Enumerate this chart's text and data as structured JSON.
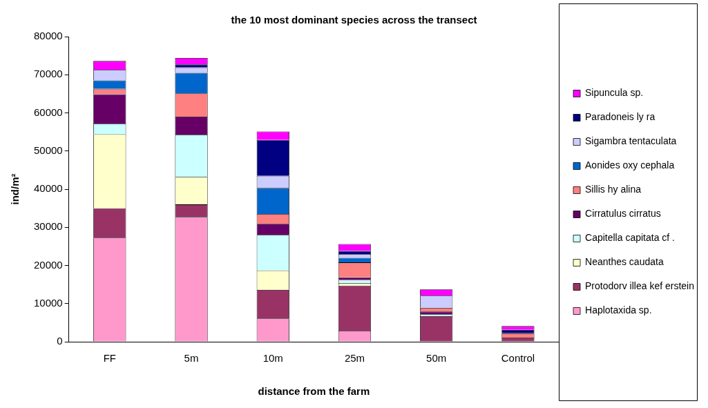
{
  "chart_data": {
    "type": "bar",
    "stacked": true,
    "title": "the 10 most dominant species across the transect",
    "xlabel": "distance from the farm",
    "ylabel": "ind/m²",
    "categories": [
      "FF",
      "5m",
      "10m",
      "25m",
      "50m",
      "Control"
    ],
    "ylim": [
      0,
      80000
    ],
    "yticks": [
      0,
      10000,
      20000,
      30000,
      40000,
      50000,
      60000,
      70000,
      80000
    ],
    "grid": false,
    "legend": "right",
    "series": [
      {
        "name": "Haplotaxida sp.",
        "color": "#ff99cc",
        "values": [
          27300,
          32700,
          6100,
          2900,
          0,
          0
        ]
      },
      {
        "name": "Protodorv illea kef erstein",
        "color": "#993366",
        "values": [
          7700,
          3300,
          7500,
          11800,
          6700,
          1100
        ]
      },
      {
        "name": "Neanthes caudata",
        "color": "#ffffcc",
        "values": [
          19400,
          7200,
          5100,
          700,
          0,
          0
        ]
      },
      {
        "name": "Capitella capitata cf .",
        "color": "#ccffff",
        "values": [
          2800,
          11100,
          9300,
          800,
          500,
          0
        ]
      },
      {
        "name": "Cirratulus cirratus",
        "color": "#660066",
        "values": [
          7700,
          4700,
          2900,
          700,
          700,
          0
        ]
      },
      {
        "name": "Sillis hy alina",
        "color": "#ff8080",
        "values": [
          1400,
          6100,
          2600,
          3900,
          1000,
          1100
        ]
      },
      {
        "name": "Aonides oxy cephala",
        "color": "#0066cc",
        "values": [
          2200,
          5400,
          6800,
          1200,
          0,
          0
        ]
      },
      {
        "name": "Sigambra tentaculata",
        "color": "#ccccff",
        "values": [
          2800,
          1400,
          3200,
          1000,
          3200,
          0
        ]
      },
      {
        "name": "Paradoneis ly ra",
        "color": "#000080",
        "values": [
          0,
          800,
          9400,
          800,
          0,
          900
        ]
      },
      {
        "name": "Sipuncula sp.",
        "color": "#ff00ff",
        "values": [
          2300,
          1700,
          2200,
          1800,
          1600,
          1000
        ]
      }
    ]
  }
}
